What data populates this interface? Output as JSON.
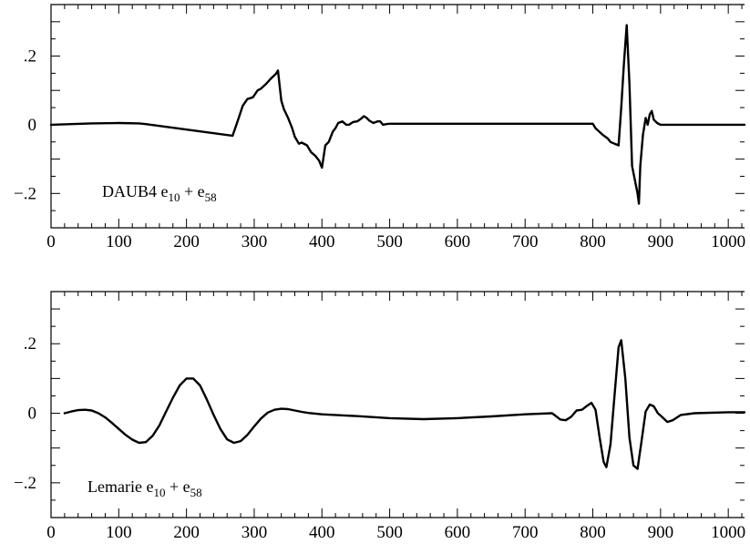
{
  "chart_data": [
    {
      "type": "line",
      "label": {
        "main": "DAUB4 e",
        "sub1": "10",
        "plus": " + e",
        "sub2": "58"
      },
      "xlim": [
        0,
        1024
      ],
      "ylim": [
        -0.3,
        0.35
      ],
      "xticks": [
        0,
        100,
        200,
        300,
        400,
        500,
        600,
        700,
        800,
        900,
        1000
      ],
      "xtick_labels": [
        "0",
        "100",
        "200",
        "300",
        "400",
        "500",
        "600",
        "700",
        "800",
        "900",
        "1000"
      ],
      "yticks": [
        0.2,
        0,
        -0.2
      ],
      "ytick_labels": [
        ".2",
        "0",
        "−.2"
      ],
      "series": [
        {
          "x": [
            0,
            30,
            60,
            100,
            130,
            140,
            268,
            272,
            278,
            283,
            290,
            298,
            305,
            310,
            318,
            325,
            332,
            335,
            340,
            344,
            350,
            356,
            360,
            366,
            370,
            378,
            384,
            390,
            396,
            400,
            405,
            410,
            416,
            420,
            424,
            430,
            436,
            440,
            446,
            452,
            458,
            462,
            466,
            470,
            476,
            482,
            486,
            490,
            495,
            500,
            700,
            800,
            804,
            815,
            822,
            826,
            832,
            838,
            842,
            846,
            850,
            854,
            858,
            862,
            866,
            868,
            870,
            874,
            878,
            881,
            884,
            887,
            890,
            895,
            900,
            1024
          ],
          "y": [
            0.0,
            0.002,
            0.004,
            0.005,
            0.004,
            0.002,
            -0.032,
            -0.01,
            0.025,
            0.055,
            0.075,
            0.08,
            0.1,
            0.105,
            0.12,
            0.135,
            0.148,
            0.158,
            0.07,
            0.045,
            0.02,
            -0.01,
            -0.035,
            -0.055,
            -0.052,
            -0.06,
            -0.08,
            -0.09,
            -0.105,
            -0.125,
            -0.06,
            -0.05,
            -0.02,
            -0.01,
            0.005,
            0.01,
            0.0,
            0.0,
            0.008,
            0.01,
            0.018,
            0.025,
            0.02,
            0.012,
            0.005,
            0.01,
            0.01,
            0.0,
            0.002,
            0.003,
            0.003,
            0.003,
            -0.01,
            -0.03,
            -0.04,
            -0.05,
            -0.055,
            -0.06,
            0.05,
            0.18,
            0.29,
            0.12,
            -0.12,
            -0.16,
            -0.2,
            -0.23,
            -0.12,
            -0.03,
            0.02,
            0.0,
            0.03,
            0.04,
            0.015,
            0.005,
            0.0,
            0.0
          ]
        }
      ]
    },
    {
      "type": "line",
      "label": {
        "main": "Lemarie e",
        "sub1": "10",
        "plus": " + e",
        "sub2": "58"
      },
      "xlim": [
        0,
        1024
      ],
      "ylim": [
        -0.3,
        0.35
      ],
      "xticks": [
        0,
        100,
        200,
        300,
        400,
        500,
        600,
        700,
        800,
        900,
        1000
      ],
      "xtick_labels": [
        "0",
        "100",
        "200",
        "300",
        "400",
        "500",
        "600",
        "700",
        "800",
        "900",
        "1000"
      ],
      "yticks": [
        0.2,
        0,
        -0.2
      ],
      "ytick_labels": [
        ".2",
        "0",
        "−.2"
      ],
      "series": [
        {
          "x": [
            20,
            30,
            40,
            50,
            60,
            70,
            80,
            90,
            100,
            110,
            120,
            130,
            140,
            150,
            160,
            170,
            180,
            190,
            200,
            210,
            220,
            230,
            240,
            250,
            260,
            270,
            280,
            290,
            300,
            310,
            320,
            330,
            340,
            350,
            360,
            370,
            380,
            390,
            400,
            450,
            500,
            550,
            600,
            650,
            700,
            740,
            752,
            760,
            768,
            776,
            784,
            792,
            798,
            804,
            810,
            816,
            820,
            826,
            832,
            838,
            842,
            848,
            854,
            860,
            866,
            872,
            878,
            884,
            890,
            896,
            902,
            910,
            918,
            930,
            950,
            1000,
            1024
          ],
          "y": [
            0.0,
            0.005,
            0.009,
            0.01,
            0.008,
            0.0,
            -0.012,
            -0.028,
            -0.045,
            -0.062,
            -0.076,
            -0.085,
            -0.083,
            -0.065,
            -0.035,
            0.005,
            0.045,
            0.08,
            0.1,
            0.1,
            0.08,
            0.04,
            -0.005,
            -0.045,
            -0.075,
            -0.085,
            -0.08,
            -0.062,
            -0.038,
            -0.015,
            0.002,
            0.01,
            0.013,
            0.012,
            0.008,
            0.004,
            0.001,
            -0.001,
            -0.003,
            -0.008,
            -0.014,
            -0.017,
            -0.014,
            -0.009,
            -0.003,
            0.0,
            -0.018,
            -0.02,
            -0.01,
            0.008,
            0.01,
            0.022,
            0.03,
            0.01,
            -0.07,
            -0.14,
            -0.155,
            -0.09,
            0.05,
            0.19,
            0.21,
            0.1,
            -0.07,
            -0.15,
            -0.16,
            -0.08,
            0.005,
            0.025,
            0.02,
            0.0,
            -0.01,
            -0.025,
            -0.02,
            -0.005,
            0.0,
            0.003,
            0.003
          ]
        }
      ]
    }
  ]
}
